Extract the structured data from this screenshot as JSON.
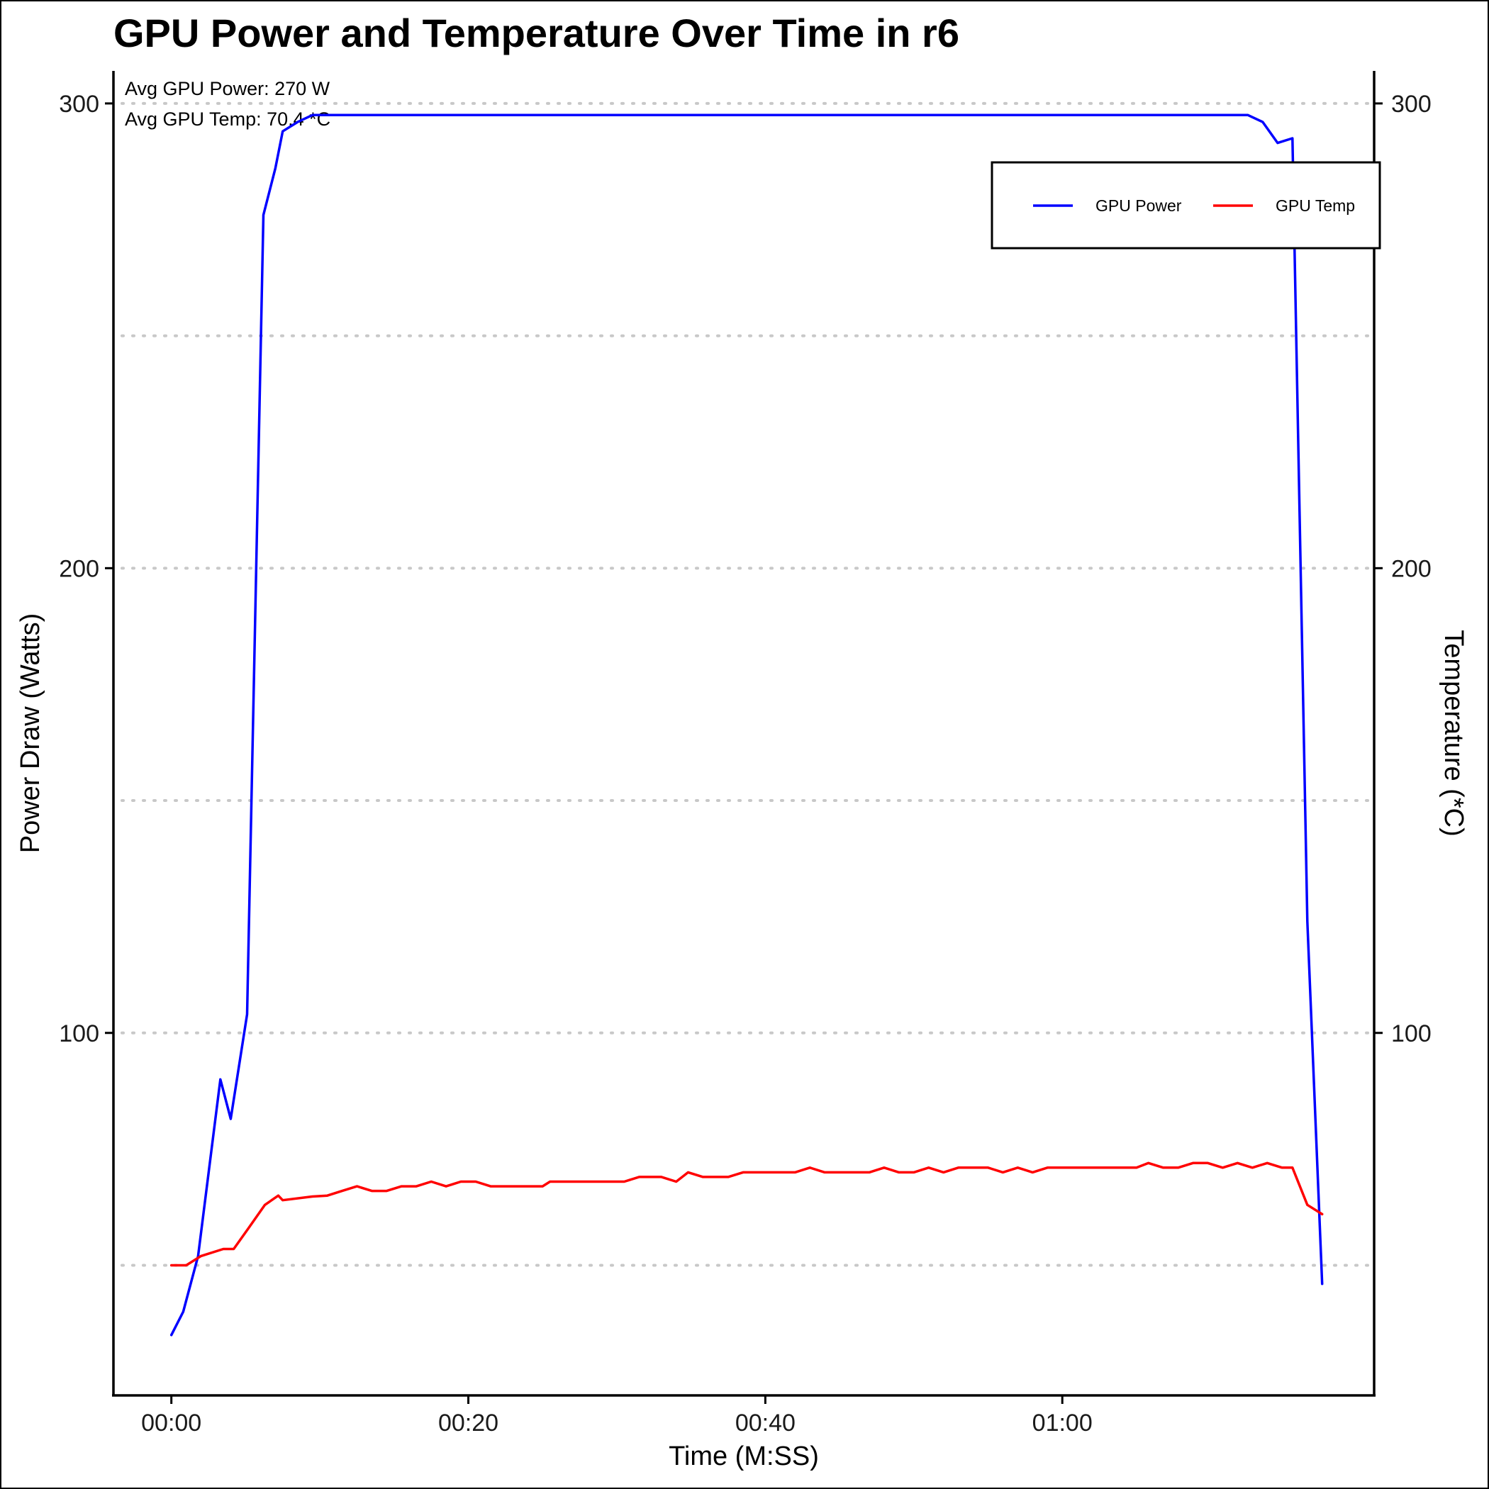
{
  "chart_data": {
    "type": "line",
    "title": "GPU Power and Temperature Over Time in r6",
    "xlabel": "Time (M:SS)",
    "ylabel": "Power Draw (Watts)",
    "y2label": "Temperature (*C)",
    "xlim": [
      -3.9,
      81
    ],
    "ylim": [
      22,
      307
    ],
    "x_ticks": [
      {
        "value": 0,
        "label": "00:00"
      },
      {
        "value": 20,
        "label": "00:20"
      },
      {
        "value": 40,
        "label": "00:40"
      },
      {
        "value": 60,
        "label": "01:00"
      }
    ],
    "y_ticks": [
      100,
      200,
      300
    ],
    "y2_ticks": [
      100,
      200,
      300
    ],
    "grid": {
      "horizontal": [
        50,
        100,
        150,
        200,
        250,
        300
      ],
      "vertical": false
    },
    "annotations": [
      "Avg GPU Power: 270 W",
      "Avg GPU Temp: 70.4 *C"
    ],
    "legend": {
      "position": "top-right",
      "entries": [
        "GPU Power",
        "GPU Temp"
      ]
    },
    "colors": {
      "GPU Power": "#0000ff",
      "GPU Temp": "#ff0000"
    },
    "series": [
      {
        "name": "GPU Power",
        "color": "#0000ff",
        "points": [
          [
            0,
            35
          ],
          [
            0.8,
            40
          ],
          [
            1.8,
            52
          ],
          [
            3.3,
            90
          ],
          [
            4,
            81.5
          ],
          [
            5.1,
            104
          ],
          [
            6.2,
            276
          ],
          [
            7,
            286
          ],
          [
            7.5,
            294
          ],
          [
            8.5,
            296
          ],
          [
            9.5,
            297.5
          ],
          [
            13.5,
            297.5
          ],
          [
            20,
            297.5
          ],
          [
            30,
            297.5
          ],
          [
            40,
            297.5
          ],
          [
            50,
            297.5
          ],
          [
            60,
            297.5
          ],
          [
            70,
            297.5
          ],
          [
            72.5,
            297.5
          ],
          [
            73.5,
            296
          ],
          [
            74.5,
            291.5
          ],
          [
            75.5,
            292.5
          ],
          [
            76.5,
            124
          ],
          [
            77.5,
            46
          ]
        ]
      },
      {
        "name": "GPU Temp",
        "color": "#ff0000",
        "points": [
          [
            0,
            50
          ],
          [
            1,
            50
          ],
          [
            2,
            52
          ],
          [
            3.5,
            53.5
          ],
          [
            4.2,
            53.5
          ],
          [
            5.2,
            58
          ],
          [
            6.3,
            63
          ],
          [
            7.2,
            65
          ],
          [
            7.5,
            64
          ],
          [
            9.5,
            64.8
          ],
          [
            10.5,
            65
          ],
          [
            11.5,
            66
          ],
          [
            12.5,
            67
          ],
          [
            13.5,
            66
          ],
          [
            14.5,
            66
          ],
          [
            15.5,
            67
          ],
          [
            16.5,
            67
          ],
          [
            17.5,
            68
          ],
          [
            18.5,
            67
          ],
          [
            19.5,
            68
          ],
          [
            20.5,
            68
          ],
          [
            21.5,
            67
          ],
          [
            25,
            67
          ],
          [
            25.5,
            68
          ],
          [
            30.5,
            68
          ],
          [
            31.5,
            69
          ],
          [
            33,
            69
          ],
          [
            34,
            68
          ],
          [
            34.8,
            70
          ],
          [
            35.8,
            69
          ],
          [
            37.5,
            69
          ],
          [
            38.5,
            70
          ],
          [
            42,
            70
          ],
          [
            43,
            71
          ],
          [
            44,
            70
          ],
          [
            47,
            70
          ],
          [
            48,
            71
          ],
          [
            49,
            70
          ],
          [
            50,
            70
          ],
          [
            51,
            71
          ],
          [
            52,
            70
          ],
          [
            53,
            71
          ],
          [
            55,
            71
          ],
          [
            56,
            70
          ],
          [
            57,
            71
          ],
          [
            58,
            70
          ],
          [
            59,
            71
          ],
          [
            65,
            71
          ],
          [
            65.8,
            72
          ],
          [
            66.8,
            71
          ],
          [
            67.8,
            71
          ],
          [
            68.8,
            72
          ],
          [
            69.8,
            72
          ],
          [
            70.8,
            71
          ],
          [
            71.8,
            72
          ],
          [
            72.8,
            71
          ],
          [
            73.8,
            72
          ],
          [
            74.8,
            71
          ],
          [
            75.5,
            71
          ],
          [
            76.5,
            63
          ],
          [
            77.5,
            61
          ]
        ]
      }
    ]
  }
}
